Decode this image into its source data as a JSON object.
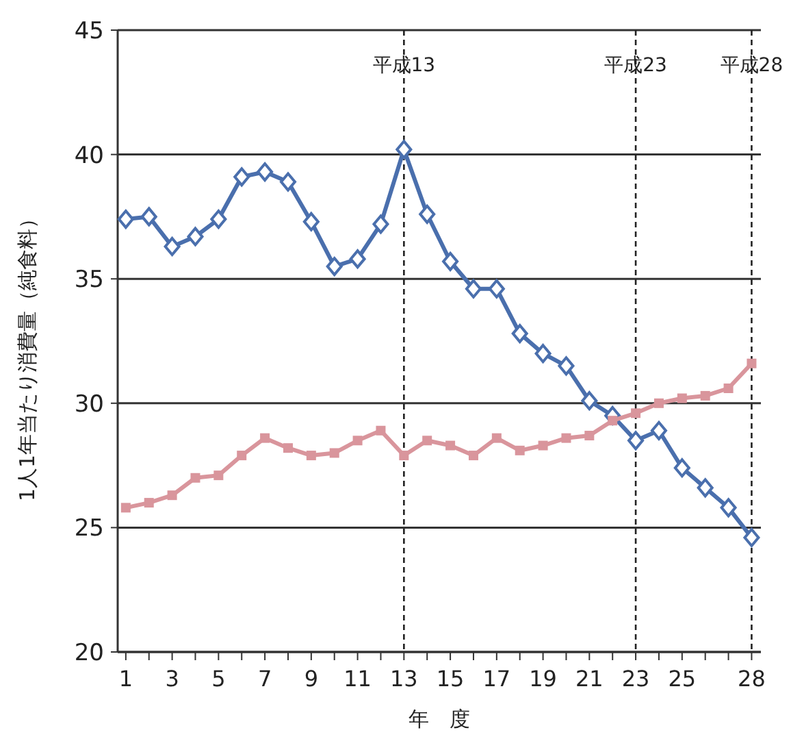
{
  "chart_data": {
    "type": "line",
    "xlabel": "年　度",
    "ylabel": "1人1年当たり消費量（純食料）",
    "x": [
      1,
      2,
      3,
      4,
      5,
      6,
      7,
      8,
      9,
      10,
      11,
      12,
      13,
      14,
      15,
      16,
      17,
      18,
      19,
      20,
      21,
      22,
      23,
      24,
      25,
      26,
      27,
      28
    ],
    "series": [
      {
        "color": "#4a6fad",
        "marker": "diamond",
        "values": [
          37.4,
          37.5,
          36.3,
          36.7,
          37.4,
          39.1,
          39.3,
          38.9,
          37.3,
          35.5,
          35.8,
          37.2,
          40.2,
          37.6,
          35.7,
          34.6,
          34.6,
          32.8,
          32.0,
          31.5,
          30.1,
          29.5,
          28.5,
          28.9,
          27.4,
          26.6,
          25.8,
          24.6
        ]
      },
      {
        "color": "#d9959c",
        "marker": "square",
        "values": [
          25.8,
          26.0,
          26.3,
          27.0,
          27.1,
          27.9,
          28.6,
          28.2,
          27.9,
          28.0,
          28.5,
          28.9,
          27.9,
          28.5,
          28.3,
          27.9,
          28.6,
          28.1,
          28.3,
          28.6,
          28.7,
          29.3,
          29.6,
          30.0,
          30.2,
          30.3,
          30.6,
          31.6
        ]
      }
    ],
    "xlim": [
      0.65,
      28.4
    ],
    "xticks": [
      1,
      {
        "value": 2,
        "label": null
      },
      3,
      {
        "value": 4,
        "label": null
      },
      5,
      {
        "value": 6,
        "label": null
      },
      7,
      {
        "value": 8,
        "label": null
      },
      9,
      {
        "value": 10,
        "label": null
      },
      11,
      {
        "value": 12,
        "label": null
      },
      13,
      {
        "value": 14,
        "label": null
      },
      15,
      {
        "value": 16,
        "label": null
      },
      17,
      {
        "value": 18,
        "label": null
      },
      19,
      {
        "value": 20,
        "label": null
      },
      21,
      {
        "value": 22,
        "label": null
      },
      23,
      {
        "value": 24,
        "label": null
      },
      25,
      {
        "value": 26,
        "label": null
      },
      {
        "value": 27,
        "label": null
      },
      28
    ],
    "ylim": [
      20,
      45
    ],
    "yticks": [
      20,
      25,
      30,
      35,
      40,
      45
    ],
    "grid": "y",
    "line_style": "solid",
    "ref_lines": [
      {
        "axis": "x",
        "value": 13,
        "label": "平成13",
        "color": "#222222",
        "line_style": "dashed"
      },
      {
        "axis": "x",
        "value": 23,
        "label": "平成23",
        "color": "#222222",
        "line_style": "dashed"
      },
      {
        "axis": "x",
        "value": 28,
        "label": "平成28",
        "color": "#222222",
        "line_style": "dashed"
      }
    ]
  }
}
